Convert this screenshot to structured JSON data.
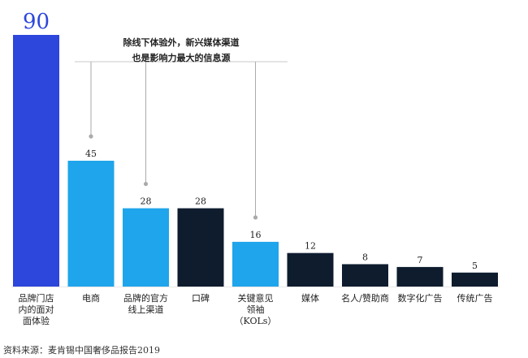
{
  "chart_data": {
    "type": "bar",
    "categories": [
      [
        "品牌门店",
        "内的面对",
        "面体验"
      ],
      [
        "电商"
      ],
      [
        "品牌的官方",
        "线上渠道"
      ],
      [
        "口碑"
      ],
      [
        "关键意见",
        "领袖",
        "（KOLs）"
      ],
      [
        "媒体"
      ],
      [
        "名人/赞助商"
      ],
      [
        "数字化广告"
      ],
      [
        "传统广告"
      ]
    ],
    "values": [
      90,
      45,
      28,
      28,
      16,
      12,
      8,
      7,
      5
    ],
    "value_labels": [
      "90",
      "45",
      "28",
      "28",
      "16",
      "12",
      "8",
      "7",
      "5"
    ],
    "bar_colors": [
      "#2D46DB",
      "#1FA5EB",
      "#1FA5EB",
      "#0E1C2E",
      "#1FA5EB",
      "#0E1C2E",
      "#0E1C2E",
      "#0E1C2E",
      "#0E1C2E"
    ],
    "highlight_label_color": "#2D46DB",
    "pointer_bars": [
      1,
      2,
      4
    ],
    "annotation": [
      "除线下体验外，新兴媒体渠道",
      "也是影响力最大的信息源"
    ],
    "ylim": [
      0,
      90
    ],
    "grid": false,
    "legend": "none"
  },
  "source": "资料来源：麦肯锡中国奢侈品报告2019"
}
